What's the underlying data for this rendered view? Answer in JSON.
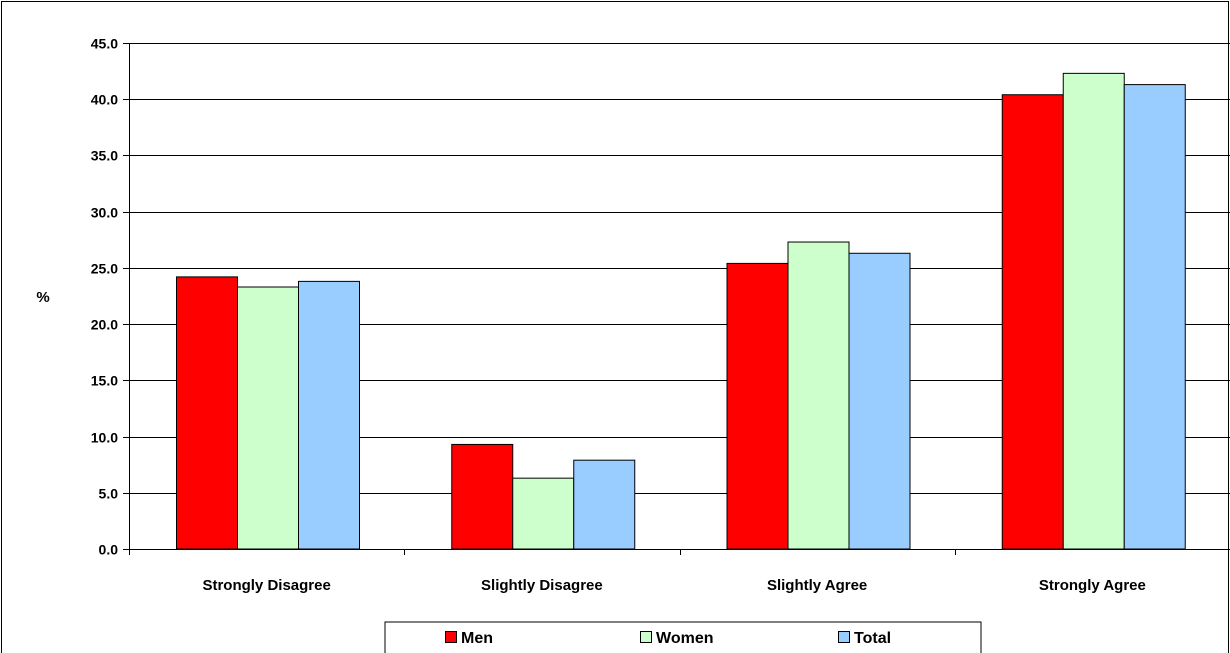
{
  "chart_data": {
    "type": "bar",
    "title": "",
    "xlabel": "",
    "ylabel": "%",
    "categories": [
      "Strongly Disagree",
      "Slightly Disagree",
      "Slightly Agree",
      "Strongly Agree"
    ],
    "series": [
      {
        "name": "Men",
        "color": "#FF0000",
        "values": [
          24.2,
          9.3,
          25.4,
          40.4
        ]
      },
      {
        "name": "Women",
        "color": "#CCFFCC",
        "values": [
          23.3,
          6.3,
          27.3,
          42.3
        ]
      },
      {
        "name": "Total",
        "color": "#99CCFF",
        "values": [
          23.8,
          7.9,
          26.3,
          41.3
        ]
      }
    ],
    "ylim": [
      0,
      45
    ],
    "yticks": [
      "0.0",
      "5.0",
      "10.0",
      "15.0",
      "20.0",
      "25.0",
      "30.0",
      "35.0",
      "40.0",
      "45.0"
    ],
    "grid": true,
    "legend": "bottom"
  }
}
